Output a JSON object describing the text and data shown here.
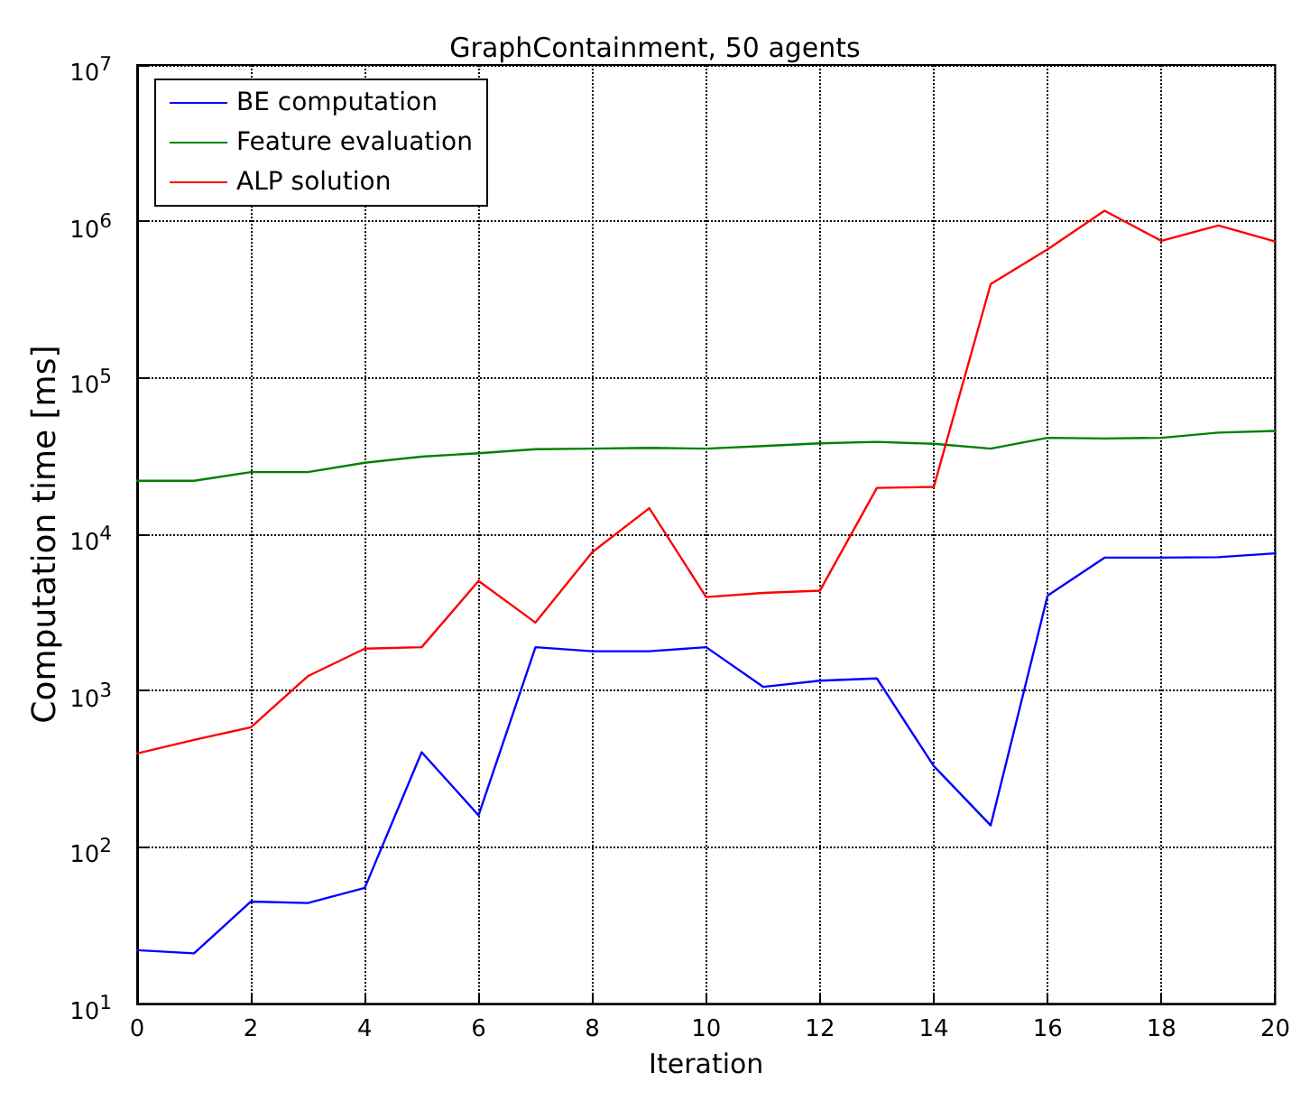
{
  "chart_data": {
    "type": "line",
    "title": "GraphContainment, 50 agents",
    "xlabel": "Iteration",
    "ylabel": "Computation time [ms]",
    "x": [
      0,
      1,
      2,
      3,
      4,
      5,
      6,
      7,
      8,
      9,
      10,
      11,
      12,
      13,
      14,
      15,
      16,
      17,
      18,
      19,
      20
    ],
    "series": [
      {
        "name": "BE computation",
        "color": "#0000ff",
        "values": [
          22,
          21,
          45,
          44,
          55,
          405,
          160,
          1900,
          1790,
          1790,
          1900,
          1060,
          1160,
          1200,
          330,
          138,
          4060,
          7100,
          7100,
          7150,
          7560
        ]
      },
      {
        "name": "Feature evaluation",
        "color": "#008000",
        "values": [
          22000,
          22000,
          25000,
          25000,
          28700,
          31400,
          33000,
          35000,
          35300,
          35700,
          35300,
          36700,
          38200,
          39000,
          37900,
          35300,
          41400,
          41000,
          41400,
          44700,
          45800
        ]
      },
      {
        "name": "ALP solution",
        "color": "#ff0000",
        "values": [
          398,
          485,
          585,
          1240,
          1860,
          1900,
          5030,
          2730,
          7700,
          14700,
          3970,
          4220,
          4370,
          19800,
          20100,
          398000,
          663000,
          1170000,
          751000,
          943000,
          744000
        ]
      }
    ],
    "xlim": [
      0,
      20
    ],
    "xticks": [
      0,
      2,
      4,
      6,
      8,
      10,
      12,
      14,
      16,
      18,
      20
    ],
    "ylim": [
      10,
      10000000
    ],
    "yticks": [
      {
        "value": 10,
        "label": "10$^{1}$"
      },
      {
        "value": 100,
        "label": "10$^{2}$"
      },
      {
        "value": 1000,
        "label": "10$^{3}$"
      },
      {
        "value": 10000,
        "label": "10$^{4}$"
      },
      {
        "value": 100000,
        "label": "10$^{5}$"
      },
      {
        "value": 1000000,
        "label": "10$^{6}$"
      },
      {
        "value": 10000000,
        "label": "10$^{7}$"
      }
    ],
    "log": "y",
    "grid": true,
    "legend": "top left",
    "marker": "none",
    "line_style": "solid"
  }
}
